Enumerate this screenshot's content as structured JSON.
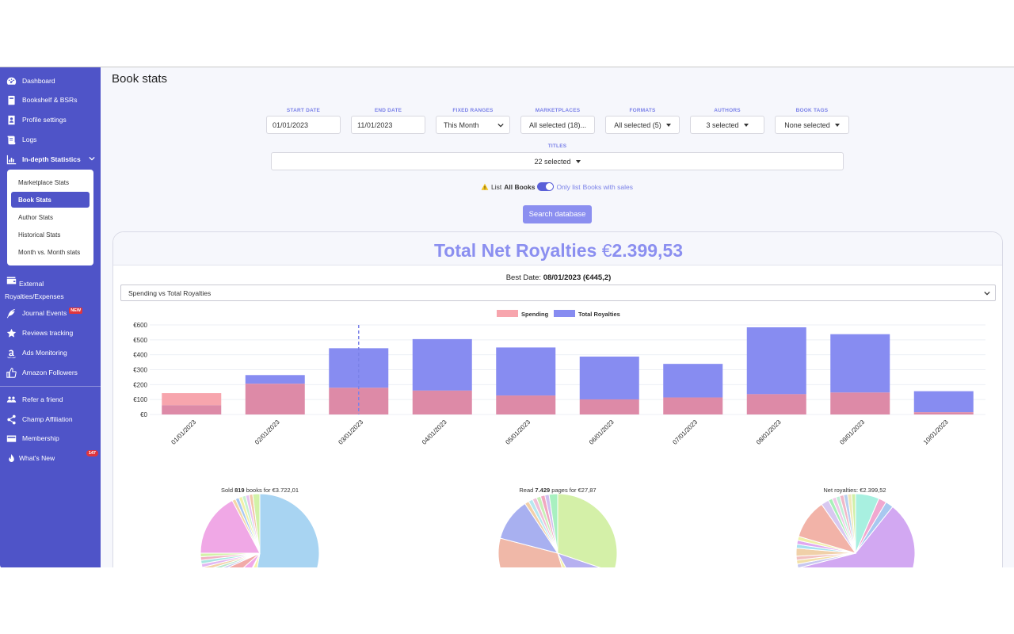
{
  "sidebar": {
    "items": [
      {
        "label": "Dashboard",
        "icon": "dashboard-icon"
      },
      {
        "label": "Bookshelf & BSRs",
        "icon": "book-icon"
      },
      {
        "label": "Profile settings",
        "icon": "profile-icon"
      },
      {
        "label": "Logs",
        "icon": "scroll-icon"
      },
      {
        "label": "In-depth Statistics",
        "icon": "chart-icon"
      }
    ],
    "sub_items": [
      {
        "label": "Marketplace Stats"
      },
      {
        "label": "Book Stats"
      },
      {
        "label": "Author Stats"
      },
      {
        "label": "Historical Stats"
      },
      {
        "label": "Month vs. Month stats"
      }
    ],
    "lower_items": [
      {
        "label": "External Royalties/Expenses",
        "icon": "wallet-icon"
      },
      {
        "label": "Journal Events",
        "icon": "feather-icon",
        "badge": "NEW"
      },
      {
        "label": "Reviews tracking",
        "icon": "star-icon"
      },
      {
        "label": "Ads Monitoring",
        "icon": "amazon-icon"
      },
      {
        "label": "Amazon Followers",
        "icon": "thumbs-up-icon"
      }
    ],
    "bottom_items": [
      {
        "label": "Refer a friend",
        "icon": "users-icon"
      },
      {
        "label": "Champ Affiliation",
        "icon": "share-icon"
      },
      {
        "label": "Membership",
        "icon": "card-icon"
      },
      {
        "label": "What's New",
        "icon": "fire-icon",
        "badge": "147"
      }
    ]
  },
  "page": {
    "title": "Book stats"
  },
  "filters": {
    "start_date": {
      "label": "START DATE",
      "value": "01/01/2023"
    },
    "end_date": {
      "label": "END DATE",
      "value": "11/01/2023"
    },
    "fixed_ranges": {
      "label": "FIXED RANGES",
      "value": "This Month"
    },
    "marketplaces": {
      "label": "MARKETPLACES",
      "value": "All selected (18)..."
    },
    "formats": {
      "label": "FORMATS",
      "value": "All selected (5)"
    },
    "authors": {
      "label": "AUTHORS",
      "value": "3 selected"
    },
    "book_tags": {
      "label": "BOOK TAGS",
      "value": "None selected"
    },
    "titles": {
      "label": "TITLES",
      "value": "22 selected"
    }
  },
  "toggle": {
    "left_prefix": "List ",
    "left_bold": "All Books",
    "right_prefix": "Only list ",
    "right_bold": "Books with sales"
  },
  "search_button": "Search database",
  "summary": {
    "title": "Total Net Royalties",
    "currency": "€",
    "amount": "2.399,53",
    "best_date_label": "Best Date: ",
    "best_date_value": "08/01/2023 (€445,2)",
    "chart_select": "Spending vs Total Royalties"
  },
  "colors": {
    "spending": "#f7a5ad",
    "royalties": "#878cf1",
    "overlap": "#dd8aa7"
  },
  "chart_data": [
    {
      "type": "bar",
      "categories": [
        "01/01/2023",
        "02/01/2023",
        "03/01/2023",
        "04/01/2023",
        "05/01/2023",
        "06/01/2023",
        "07/01/2023",
        "08/01/2023",
        "09/01/2023",
        "10/01/2023"
      ],
      "series": [
        {
          "name": "Spending",
          "values": [
            143,
            206,
            179,
            160,
            127,
            101,
            114,
            136,
            147,
            15
          ]
        },
        {
          "name": "Total Royalties",
          "values": [
            62,
            264,
            444,
            505,
            449,
            388,
            339,
            584,
            538,
            156
          ]
        }
      ],
      "y_ticks": [
        "€0",
        "€100",
        "€200",
        "€300",
        "€400",
        "€500",
        "€600"
      ],
      "ylim": [
        0,
        600
      ],
      "legend": "top-center",
      "grid": true
    },
    {
      "type": "pie",
      "title_prefix": "Sold ",
      "title_bold": "819",
      "title_mid": " books for ",
      "title_value": "€3.722,01",
      "values": [
        55,
        4,
        1,
        6,
        5,
        1,
        1,
        1,
        1,
        1,
        1,
        1,
        18,
        1,
        1,
        1,
        1,
        1,
        1,
        2
      ],
      "colors": [
        "#a8d4f2",
        "#f6f3a8",
        "#f3c0f3",
        "#f0a8e8",
        "#f1aaa8",
        "#c8c8f0",
        "#b6e6c9",
        "#f2d1a8",
        "#e2b6f2",
        "#a8e6e1",
        "#f2b3c4",
        "#d4f2a8",
        "#f0a8e6",
        "#f4d6a8",
        "#a8c8f2",
        "#f2f0a8",
        "#c6f2d0",
        "#e9c2f2",
        "#f2c8a8",
        "#d2f2a8"
      ]
    },
    {
      "type": "pie",
      "title_prefix": "Read ",
      "title_bold": "7.429",
      "title_mid": " pages for ",
      "title_value": "€27,87",
      "values": [
        26,
        10,
        3,
        29,
        10,
        1,
        1,
        1,
        1,
        1,
        1,
        2
      ],
      "colors": [
        "#d4f0a8",
        "#b6b0f0",
        "#f2f0a8",
        "#f0b8a8",
        "#a8b0f0",
        "#f2d0a8",
        "#b8e8f0",
        "#f0c0d8",
        "#c8f0b8",
        "#f0a8c0",
        "#d0c0f0",
        "#a8f0c0"
      ]
    },
    {
      "type": "pie",
      "title_prefix": "Net royalties: ",
      "title_bold": "",
      "title_mid": "",
      "title_value": "€2.399,52",
      "values": [
        6,
        2,
        2,
        56,
        1,
        1,
        1,
        2,
        1,
        1,
        1,
        10,
        2,
        1,
        1,
        1,
        1,
        1,
        1,
        1
      ],
      "colors": [
        "#a8f0e0",
        "#f0a8d0",
        "#a8c8f0",
        "#d2a8f2",
        "#c8c8f0",
        "#f2e0a8",
        "#f2c0c0",
        "#f0d0a8",
        "#a8e0f0",
        "#e0a8f0",
        "#f0f0a8",
        "#f2b3a8",
        "#d8c8f0",
        "#a8f0b8",
        "#f0c8e8",
        "#c0f0d8",
        "#f0b8c8",
        "#b8d0f0",
        "#f0e8b8",
        "#d0f0a8"
      ]
    }
  ]
}
